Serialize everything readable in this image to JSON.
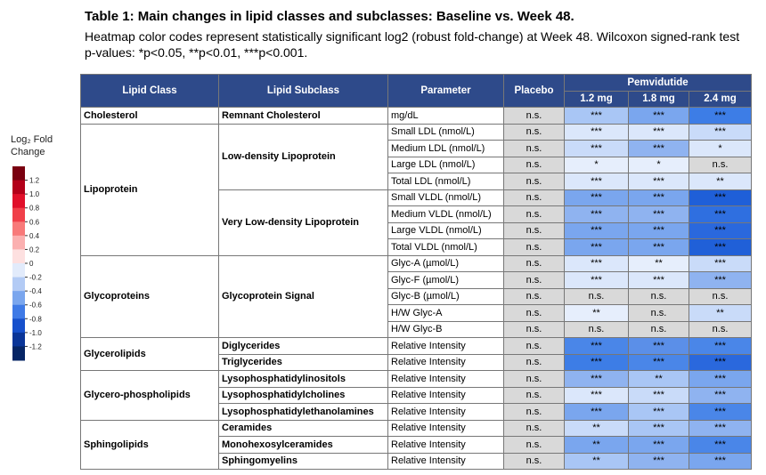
{
  "header": {
    "title": "Table 1: Main changes in lipid classes and subclasses: Baseline vs. Week 48.",
    "subtitle": "Heatmap color codes represent statistically significant log2 (robust fold-change) at Week 48. Wilcoxon signed-rank test p-values: *p<0.05, **p<0.01, ***p<0.001."
  },
  "legend": {
    "title": "Log₂ Fold Change",
    "lim": [
      -1.4,
      1.4
    ],
    "colors": [
      "#7a0010",
      "#b3001a",
      "#e0102a",
      "#f0404a",
      "#f87a7a",
      "#fbb0b0",
      "#fde0e0",
      "#e2ebfb",
      "#b3cbf5",
      "#7aa6ee",
      "#3f7ae6",
      "#1650cc",
      "#0a3598",
      "#062565"
    ],
    "ticks": [
      1.2,
      {
        "value": 1,
        "label": "1.0"
      },
      0.8,
      0.6,
      0.4,
      0.2,
      0,
      -0.2,
      -0.4,
      -0.6,
      -0.8,
      {
        "value": -1,
        "label": "-1.0"
      },
      -1.2
    ]
  },
  "table": {
    "columns": [
      "Lipid Class",
      "Lipid Subclass",
      "Parameter",
      "Placebo"
    ],
    "group_header": "Pemvidutide",
    "doses": [
      "1.2 mg",
      "1.8 mg",
      "2.4 mg"
    ],
    "na_color": "#d9d9d9",
    "groups": [
      {
        "class": "Cholesterol",
        "subgroups": [
          {
            "subclass": "Remnant Cholesterol",
            "rows": [
              {
                "parameter": "mg/dL",
                "placebo": "n.s.",
                "cells": [
                  {
                    "text": "***",
                    "color": "#a9c6f5"
                  },
                  {
                    "text": "***",
                    "color": "#7aa6ee"
                  },
                  {
                    "text": "***",
                    "color": "#3d7de6"
                  }
                ]
              }
            ]
          }
        ]
      },
      {
        "class": "Lipoprotein",
        "subgroups": [
          {
            "subclass": "Low-density Lipoprotein",
            "rows": [
              {
                "parameter": "Small LDL (nmol/L)",
                "placebo": "n.s.",
                "cells": [
                  {
                    "text": "***",
                    "color": "#dbe7fb"
                  },
                  {
                    "text": "***",
                    "color": "#dbe7fb"
                  },
                  {
                    "text": "***",
                    "color": "#c9dbf9"
                  }
                ]
              },
              {
                "parameter": "Medium LDL (nmol/L)",
                "placebo": "n.s.",
                "cells": [
                  {
                    "text": "***",
                    "color": "#c9dbf9"
                  },
                  {
                    "text": "***",
                    "color": "#8fb3f0"
                  },
                  {
                    "text": "*",
                    "color": "#dbe7fb"
                  }
                ]
              },
              {
                "parameter": "Large LDL (nmol/L)",
                "placebo": "n.s.",
                "cells": [
                  {
                    "text": "*",
                    "color": "#e6eefc"
                  },
                  {
                    "text": "*",
                    "color": "#e6eefc"
                  },
                  {
                    "text": "n.s.",
                    "color": "#d9d9d9"
                  }
                ]
              },
              {
                "parameter": "Total LDL (nmol/L)",
                "placebo": "n.s.",
                "cells": [
                  {
                    "text": "***",
                    "color": "#dbe7fb"
                  },
                  {
                    "text": "***",
                    "color": "#dbe7fb"
                  },
                  {
                    "text": "**",
                    "color": "#dbe7fb"
                  }
                ]
              }
            ]
          },
          {
            "subclass": "Very Low-density Lipoprotein",
            "rows": [
              {
                "parameter": "Small VLDL (nmol/L)",
                "placebo": "n.s.",
                "cells": [
                  {
                    "text": "***",
                    "color": "#7aa6ee"
                  },
                  {
                    "text": "***",
                    "color": "#7aa6ee"
                  },
                  {
                    "text": "***",
                    "color": "#1f5fd8"
                  }
                ]
              },
              {
                "parameter": "Medium VLDL (nmol/L)",
                "placebo": "n.s.",
                "cells": [
                  {
                    "text": "***",
                    "color": "#8fb3f0"
                  },
                  {
                    "text": "***",
                    "color": "#8fb3f0"
                  },
                  {
                    "text": "***",
                    "color": "#2f6fe0"
                  }
                ]
              },
              {
                "parameter": "Large VLDL (nmol/L)",
                "placebo": "n.s.",
                "cells": [
                  {
                    "text": "***",
                    "color": "#7aa6ee"
                  },
                  {
                    "text": "***",
                    "color": "#7aa6ee"
                  },
                  {
                    "text": "***",
                    "color": "#2a68dd"
                  }
                ]
              },
              {
                "parameter": "Total VLDL (nmol/L)",
                "placebo": "n.s.",
                "cells": [
                  {
                    "text": "***",
                    "color": "#7aa6ee"
                  },
                  {
                    "text": "***",
                    "color": "#7aa6ee"
                  },
                  {
                    "text": "***",
                    "color": "#2060d8"
                  }
                ]
              }
            ]
          }
        ]
      },
      {
        "class": "Glycoproteins",
        "subgroups": [
          {
            "subclass": "Glycoprotein Signal",
            "rows": [
              {
                "parameter": "Glyc-A (µmol/L)",
                "placebo": "n.s.",
                "cells": [
                  {
                    "text": "***",
                    "color": "#dbe7fb"
                  },
                  {
                    "text": "**",
                    "color": "#e6eefc"
                  },
                  {
                    "text": "***",
                    "color": "#c9dbf9"
                  }
                ]
              },
              {
                "parameter": "Glyc-F (µmol/L)",
                "placebo": "n.s.",
                "cells": [
                  {
                    "text": "***",
                    "color": "#dbe7fb"
                  },
                  {
                    "text": "***",
                    "color": "#dbe7fb"
                  },
                  {
                    "text": "***",
                    "color": "#8fb3f0"
                  }
                ]
              },
              {
                "parameter": "Glyc-B (µmol/L)",
                "placebo": "n.s.",
                "cells": [
                  {
                    "text": "n.s.",
                    "color": "#d9d9d9"
                  },
                  {
                    "text": "n.s.",
                    "color": "#d9d9d9"
                  },
                  {
                    "text": "n.s.",
                    "color": "#d9d9d9"
                  }
                ]
              },
              {
                "parameter": "H/W Glyc-A",
                "placebo": "n.s.",
                "cells": [
                  {
                    "text": "**",
                    "color": "#e6eefc"
                  },
                  {
                    "text": "n.s.",
                    "color": "#d9d9d9"
                  },
                  {
                    "text": "**",
                    "color": "#c9dbf9"
                  }
                ]
              },
              {
                "parameter": "H/W Glyc-B",
                "placebo": "n.s.",
                "cells": [
                  {
                    "text": "n.s.",
                    "color": "#d9d9d9"
                  },
                  {
                    "text": "n.s.",
                    "color": "#d9d9d9"
                  },
                  {
                    "text": "n.s.",
                    "color": "#d9d9d9"
                  }
                ]
              }
            ]
          }
        ]
      },
      {
        "class": "Glycerolipids",
        "subgroups": [
          {
            "subclass": "Diglycerides",
            "rows": [
              {
                "parameter": "Relative Intensity",
                "placebo": "n.s.",
                "cells": [
                  {
                    "text": "***",
                    "color": "#4a86e8"
                  },
                  {
                    "text": "***",
                    "color": "#5b8fe8"
                  },
                  {
                    "text": "***",
                    "color": "#4a86e8"
                  }
                ]
              }
            ]
          },
          {
            "subclass": "Triglycerides",
            "rows": [
              {
                "parameter": "Relative Intensity",
                "placebo": "n.s.",
                "cells": [
                  {
                    "text": "***",
                    "color": "#3d7de6"
                  },
                  {
                    "text": "***",
                    "color": "#4a86e8"
                  },
                  {
                    "text": "***",
                    "color": "#2a68dd"
                  }
                ]
              }
            ]
          }
        ]
      },
      {
        "class": "Glycero-phospholipids",
        "subgroups": [
          {
            "subclass": "Lysophosphatidylinositols",
            "rows": [
              {
                "parameter": "Relative Intensity",
                "placebo": "n.s.",
                "cells": [
                  {
                    "text": "***",
                    "color": "#8fb3f0"
                  },
                  {
                    "text": "**",
                    "color": "#a9c6f5"
                  },
                  {
                    "text": "***",
                    "color": "#7aa6ee"
                  }
                ]
              }
            ]
          },
          {
            "subclass": "Lysophosphatidylcholines",
            "rows": [
              {
                "parameter": "Relative Intensity",
                "placebo": "n.s.",
                "cells": [
                  {
                    "text": "***",
                    "color": "#dbe7fb"
                  },
                  {
                    "text": "***",
                    "color": "#c9dbf9"
                  },
                  {
                    "text": "***",
                    "color": "#8fb3f0"
                  }
                ]
              }
            ]
          },
          {
            "subclass": "Lysophosphatidylethanolamines",
            "rows": [
              {
                "parameter": "Relative Intensity",
                "placebo": "n.s.",
                "cells": [
                  {
                    "text": "***",
                    "color": "#7aa6ee"
                  },
                  {
                    "text": "***",
                    "color": "#a9c6f5"
                  },
                  {
                    "text": "***",
                    "color": "#4a86e8"
                  }
                ]
              }
            ]
          }
        ]
      },
      {
        "class": "Sphingolipids",
        "subgroups": [
          {
            "subclass": "Ceramides",
            "rows": [
              {
                "parameter": "Relative Intensity",
                "placebo": "n.s.",
                "cells": [
                  {
                    "text": "**",
                    "color": "#c9dbf9"
                  },
                  {
                    "text": "***",
                    "color": "#a9c6f5"
                  },
                  {
                    "text": "***",
                    "color": "#8fb3f0"
                  }
                ]
              }
            ]
          },
          {
            "subclass": "Monohexosylceramides",
            "rows": [
              {
                "parameter": "Relative Intensity",
                "placebo": "n.s.",
                "cells": [
                  {
                    "text": "**",
                    "color": "#7aa6ee"
                  },
                  {
                    "text": "***",
                    "color": "#7aa6ee"
                  },
                  {
                    "text": "***",
                    "color": "#4a86e8"
                  }
                ]
              }
            ]
          },
          {
            "subclass": "Sphingomyelins",
            "rows": [
              {
                "parameter": "Relative Intensity",
                "placebo": "n.s.",
                "cells": [
                  {
                    "text": "**",
                    "color": "#a9c6f5"
                  },
                  {
                    "text": "***",
                    "color": "#8fb3f0"
                  },
                  {
                    "text": "***",
                    "color": "#7aa6ee"
                  }
                ]
              }
            ]
          }
        ]
      }
    ]
  }
}
